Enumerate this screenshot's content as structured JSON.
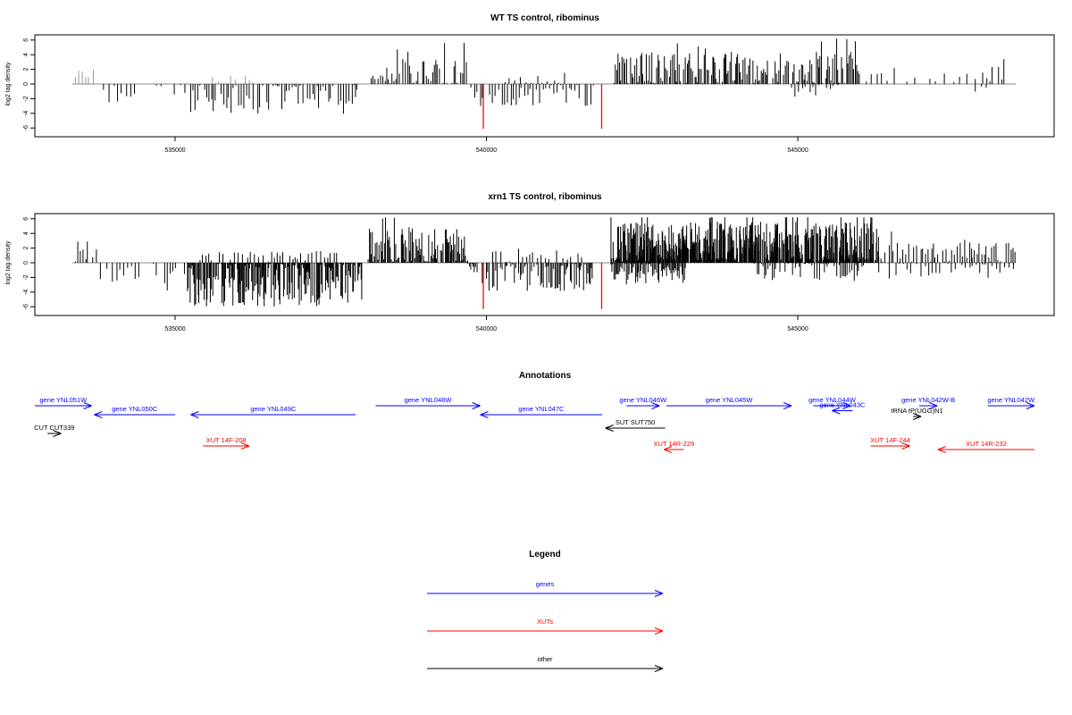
{
  "colors": {
    "genes": "#0000ff",
    "xuts": "#ff0000",
    "other": "#000000",
    "signal": "#000000",
    "highlight": "#ff0000",
    "baseline": "#888888"
  },
  "chart_data": [
    {
      "type": "bar",
      "title": "WT TS control, ribominus",
      "ylabel": "log2 tag density",
      "ylim": [
        -7,
        7
      ],
      "yticks": [
        -6,
        -4,
        -2,
        0,
        2,
        4,
        6
      ],
      "xlim": [
        532200,
        548800
      ],
      "xticks": [
        535000,
        540000,
        545000
      ],
      "xtick_labels": [
        "535000",
        "540000",
        "545000"
      ],
      "grid": false,
      "highlight_values": [
        [
          539950,
          -6.1
        ],
        [
          541850,
          -6.1
        ]
      ],
      "segments": [
        {
          "x0": 533400,
          "x1": 533700,
          "step": 45,
          "base": 1.4,
          "amp": 0.7,
          "sign": 1,
          "shade": "gray"
        },
        {
          "x0": 533850,
          "x1": 534400,
          "step": 75,
          "base": -1.5,
          "amp": 1.6,
          "sign": -1
        },
        {
          "x0": 534700,
          "x1": 535200,
          "step": 90,
          "base": -1.2,
          "amp": 1.6,
          "sign": -1
        },
        {
          "x0": 535250,
          "x1": 537950,
          "step": 35,
          "base": -1.7,
          "amp": 2.4,
          "sign": -1
        },
        {
          "x0": 535600,
          "x1": 536300,
          "step": 70,
          "base": 0.6,
          "amp": 0.8,
          "sign": 1,
          "shade": "gray"
        },
        {
          "x0": 538150,
          "x1": 539700,
          "step": 30,
          "base": 1.7,
          "amp": 2.0,
          "sign": 1
        },
        {
          "x0": 539750,
          "x1": 541750,
          "step": 45,
          "base": -1.1,
          "amp": 2.0,
          "sign": -1
        },
        {
          "x0": 540300,
          "x1": 541300,
          "step": 90,
          "base": 0.7,
          "amp": 0.9,
          "sign": 1
        },
        {
          "x0": 542050,
          "x1": 546000,
          "step": 22,
          "base": 2.0,
          "amp": 2.4,
          "sign": 1
        },
        {
          "x0": 544900,
          "x1": 545700,
          "step": 60,
          "base": -0.6,
          "amp": 1.2,
          "sign": -1
        },
        {
          "x0": 546100,
          "x1": 547800,
          "step": 110,
          "base": 0.9,
          "amp": 0.8,
          "sign": 1
        },
        {
          "x0": 547850,
          "x1": 548350,
          "step": 50,
          "base": 1.3,
          "amp": 1.3,
          "sign": 1
        },
        {
          "x0": 547850,
          "x1": 548100,
          "step": 90,
          "base": -0.8,
          "amp": 0.8,
          "sign": -1
        }
      ]
    },
    {
      "type": "bar",
      "title": "xrn1 TS control, ribominus",
      "ylabel": "log2 tag density",
      "ylim": [
        -7,
        7
      ],
      "yticks": [
        -6,
        -4,
        -2,
        0,
        2,
        4,
        6
      ],
      "xlim": [
        532200,
        548800
      ],
      "xticks": [
        535000,
        540000,
        545000
      ],
      "xtick_labels": [
        "535000",
        "540000",
        "545000"
      ],
      "grid": false,
      "highlight_values": [
        [
          539950,
          -6.3
        ],
        [
          541850,
          -6.3
        ]
      ],
      "segments": [
        {
          "x0": 533400,
          "x1": 533750,
          "step": 35,
          "base": 1.6,
          "amp": 1.6,
          "sign": 1
        },
        {
          "x0": 533800,
          "x1": 534450,
          "step": 55,
          "base": -1.4,
          "amp": 1.4,
          "sign": -1
        },
        {
          "x0": 534650,
          "x1": 535200,
          "step": 65,
          "base": -1.4,
          "amp": 2.6,
          "sign": -1
        },
        {
          "x0": 535200,
          "x1": 538000,
          "step": 13,
          "base": -2.6,
          "amp": 3.4,
          "sign": -1
        },
        {
          "x0": 535400,
          "x1": 537600,
          "step": 55,
          "base": 0.8,
          "amp": 0.8,
          "sign": 1
        },
        {
          "x0": 538100,
          "x1": 539700,
          "step": 16,
          "base": 2.1,
          "amp": 2.6,
          "sign": 1
        },
        {
          "x0": 539700,
          "x1": 541700,
          "step": 22,
          "base": -1.5,
          "amp": 2.4,
          "sign": -1
        },
        {
          "x0": 540100,
          "x1": 541600,
          "step": 60,
          "base": 0.8,
          "amp": 1.0,
          "sign": 1
        },
        {
          "x0": 542000,
          "x1": 546300,
          "step": 8,
          "base": 2.4,
          "amp": 3.2,
          "sign": 1
        },
        {
          "x0": 542000,
          "x1": 543200,
          "step": 18,
          "base": -1.5,
          "amp": 1.5,
          "sign": -1
        },
        {
          "x0": 544300,
          "x1": 546100,
          "step": 30,
          "base": -1.1,
          "amp": 1.4,
          "sign": -1
        },
        {
          "x0": 546300,
          "x1": 547800,
          "step": 35,
          "base": 1.3,
          "amp": 1.5,
          "sign": 1
        },
        {
          "x0": 546300,
          "x1": 547800,
          "step": 80,
          "base": -1.0,
          "amp": 1.2,
          "sign": -1
        },
        {
          "x0": 547800,
          "x1": 548500,
          "step": 35,
          "base": 1.4,
          "amp": 1.4,
          "sign": 1
        },
        {
          "x0": 547800,
          "x1": 548500,
          "step": 60,
          "base": -1.3,
          "amp": 1.4,
          "sign": -1
        }
      ]
    }
  ],
  "annotations": {
    "title": "Annotations",
    "features": [
      {
        "label": "gene YNL051W",
        "type": "genes",
        "strand": "+",
        "start": 532200,
        "end": 533660,
        "row": 0
      },
      {
        "label": "gene YNL050C",
        "type": "genes",
        "strand": "-",
        "start": 533700,
        "end": 535000,
        "row": 1
      },
      {
        "label": "gene YNL049C",
        "type": "genes",
        "strand": "-",
        "start": 535250,
        "end": 537900,
        "row": 1
      },
      {
        "label": "gene YNL048W",
        "type": "genes",
        "strand": "+",
        "start": 538220,
        "end": 539900,
        "row": 0
      },
      {
        "label": "gene YNL047C",
        "type": "genes",
        "strand": "-",
        "start": 539900,
        "end": 541860,
        "row": 1
      },
      {
        "label": "gene YNL046W",
        "type": "genes",
        "strand": "+",
        "start": 542250,
        "end": 542780,
        "row": 0
      },
      {
        "label": "gene YNL045W",
        "type": "genes",
        "strand": "+",
        "start": 542890,
        "end": 544900,
        "row": 0
      },
      {
        "label": "gene YNL044W",
        "type": "genes",
        "strand": "+",
        "start": 545250,
        "end": 545850,
        "row": 0
      },
      {
        "label": "gene YNL043C",
        "type": "genes",
        "strand": "-",
        "start": 545550,
        "end": 545880,
        "row": 0.55
      },
      {
        "label": "gene YNL042W-B",
        "type": "genes",
        "strand": "+",
        "start": 546950,
        "end": 547240,
        "row": 0
      },
      {
        "label": "gene YNL042W",
        "type": "genes",
        "strand": "+",
        "start": 548050,
        "end": 548800,
        "row": 0
      },
      {
        "label": "tRNA tP(UGG)N1",
        "type": "other",
        "strand": "+",
        "start": 546850,
        "end": 546980,
        "row": 1.2
      },
      {
        "label": "SUT SUT750",
        "type": "other",
        "strand": "-",
        "start": 541910,
        "end": 542870,
        "row": 2.5
      },
      {
        "label": "CUT CUT339",
        "type": "other",
        "strand": "+",
        "start": 532950,
        "end": 533170,
        "row": 3.1
      },
      {
        "label": "XUT 14F-208",
        "type": "xuts",
        "strand": "+",
        "start": 535450,
        "end": 536190,
        "row": 4.5
      },
      {
        "label": "XUT 14R-229",
        "type": "xuts",
        "strand": "-",
        "start": 542850,
        "end": 543170,
        "row": 4.9
      },
      {
        "label": "XUT 14F-244",
        "type": "xuts",
        "strand": "+",
        "start": 546170,
        "end": 546800,
        "row": 4.5
      },
      {
        "label": "XUT 14R-232",
        "type": "xuts",
        "strand": "-",
        "start": 547250,
        "end": 548800,
        "row": 4.9
      }
    ]
  },
  "legend": {
    "title": "Legend",
    "items": [
      {
        "label": "genes",
        "type": "genes"
      },
      {
        "label": "XUTs",
        "type": "xuts"
      },
      {
        "label": "other",
        "type": "other"
      }
    ]
  }
}
